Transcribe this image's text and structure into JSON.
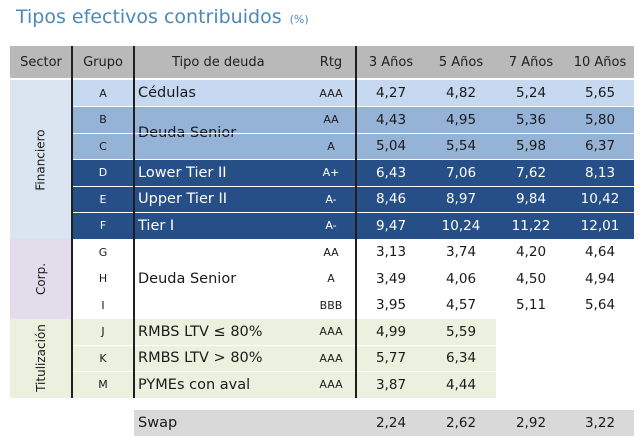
{
  "title": "Tipos efectivos contribuidos",
  "title_unit": "(%)",
  "headers": [
    "Sector",
    "Grupo",
    "Tipo de deuda",
    "Rtg",
    "3 Años",
    "5 Años",
    "7 Años",
    "10 Años"
  ],
  "sectors": [
    "Financiero",
    "Corp.",
    "Titulización"
  ],
  "rows": [
    {
      "grupo": "A",
      "tipo": "Cédulas",
      "rtg": "AAA",
      "v3": "4,27",
      "v5": "4,82",
      "v7": "5,24",
      "v10": "5,65"
    },
    {
      "grupo": "B",
      "tipo": "",
      "rtg": "AA",
      "v3": "4,43",
      "v5": "4,95",
      "v7": "5,36",
      "v10": "5,80"
    },
    {
      "grupo": "C",
      "tipo": "",
      "rtg": "A",
      "v3": "5,04",
      "v5": "5,54",
      "v7": "5,98",
      "v10": "6,37"
    },
    {
      "grupo": "D",
      "tipo": "Lower Tier II",
      "rtg": "A+",
      "v3": "6,43",
      "v5": "7,06",
      "v7": "7,62",
      "v10": "8,13"
    },
    {
      "grupo": "E",
      "tipo": "Upper Tier II",
      "rtg": "A-",
      "v3": "8,46",
      "v5": "8,97",
      "v7": "9,84",
      "v10": "10,42"
    },
    {
      "grupo": "F",
      "tipo": "Tier I",
      "rtg": "A-",
      "v3": "9,47",
      "v5": "10,24",
      "v7": "11,22",
      "v10": "12,01"
    },
    {
      "grupo": "G",
      "tipo": "",
      "rtg": "AA",
      "v3": "3,13",
      "v5": "3,74",
      "v7": "4,20",
      "v10": "4,64"
    },
    {
      "grupo": "H",
      "tipo": "",
      "rtg": "A",
      "v3": "3,49",
      "v5": "4,06",
      "v7": "4,50",
      "v10": "4,94"
    },
    {
      "grupo": "I",
      "tipo": "",
      "rtg": "BBB",
      "v3": "3,95",
      "v5": "4,57",
      "v7": "5,11",
      "v10": "5,64"
    },
    {
      "grupo": "J",
      "tipo": "RMBS LTV ≤ 80%",
      "rtg": "AAA",
      "v3": "4,99",
      "v5": "5,59",
      "v7": "",
      "v10": ""
    },
    {
      "grupo": "K",
      "tipo": "RMBS LTV > 80%",
      "rtg": "AAA",
      "v3": "5,77",
      "v5": "6,34",
      "v7": "",
      "v10": ""
    },
    {
      "grupo": "M",
      "tipo": "PYMEs con aval",
      "rtg": "AAA",
      "v3": "3,87",
      "v5": "4,44",
      "v7": "",
      "v10": ""
    }
  ],
  "merged_labels": {
    "senior_fin": "Deuda Senior",
    "senior_corp": "Deuda Senior"
  },
  "swap": {
    "label": "Swap",
    "v3": "2,24",
    "v5": "2,62",
    "v7": "2,92",
    "v10": "3,22"
  },
  "colors": {
    "header": "#b9b9b9",
    "fin_light": "#c6d9f1",
    "fin_mid": "#95b3d7",
    "fin_dark": "#264f87",
    "fin_sector": "#dbe5f1",
    "corp_sector": "#e3dcea",
    "tit_sector": "#ebf1de",
    "tit_cells": "#ebf1de",
    "swap": "#d9d9d9"
  }
}
